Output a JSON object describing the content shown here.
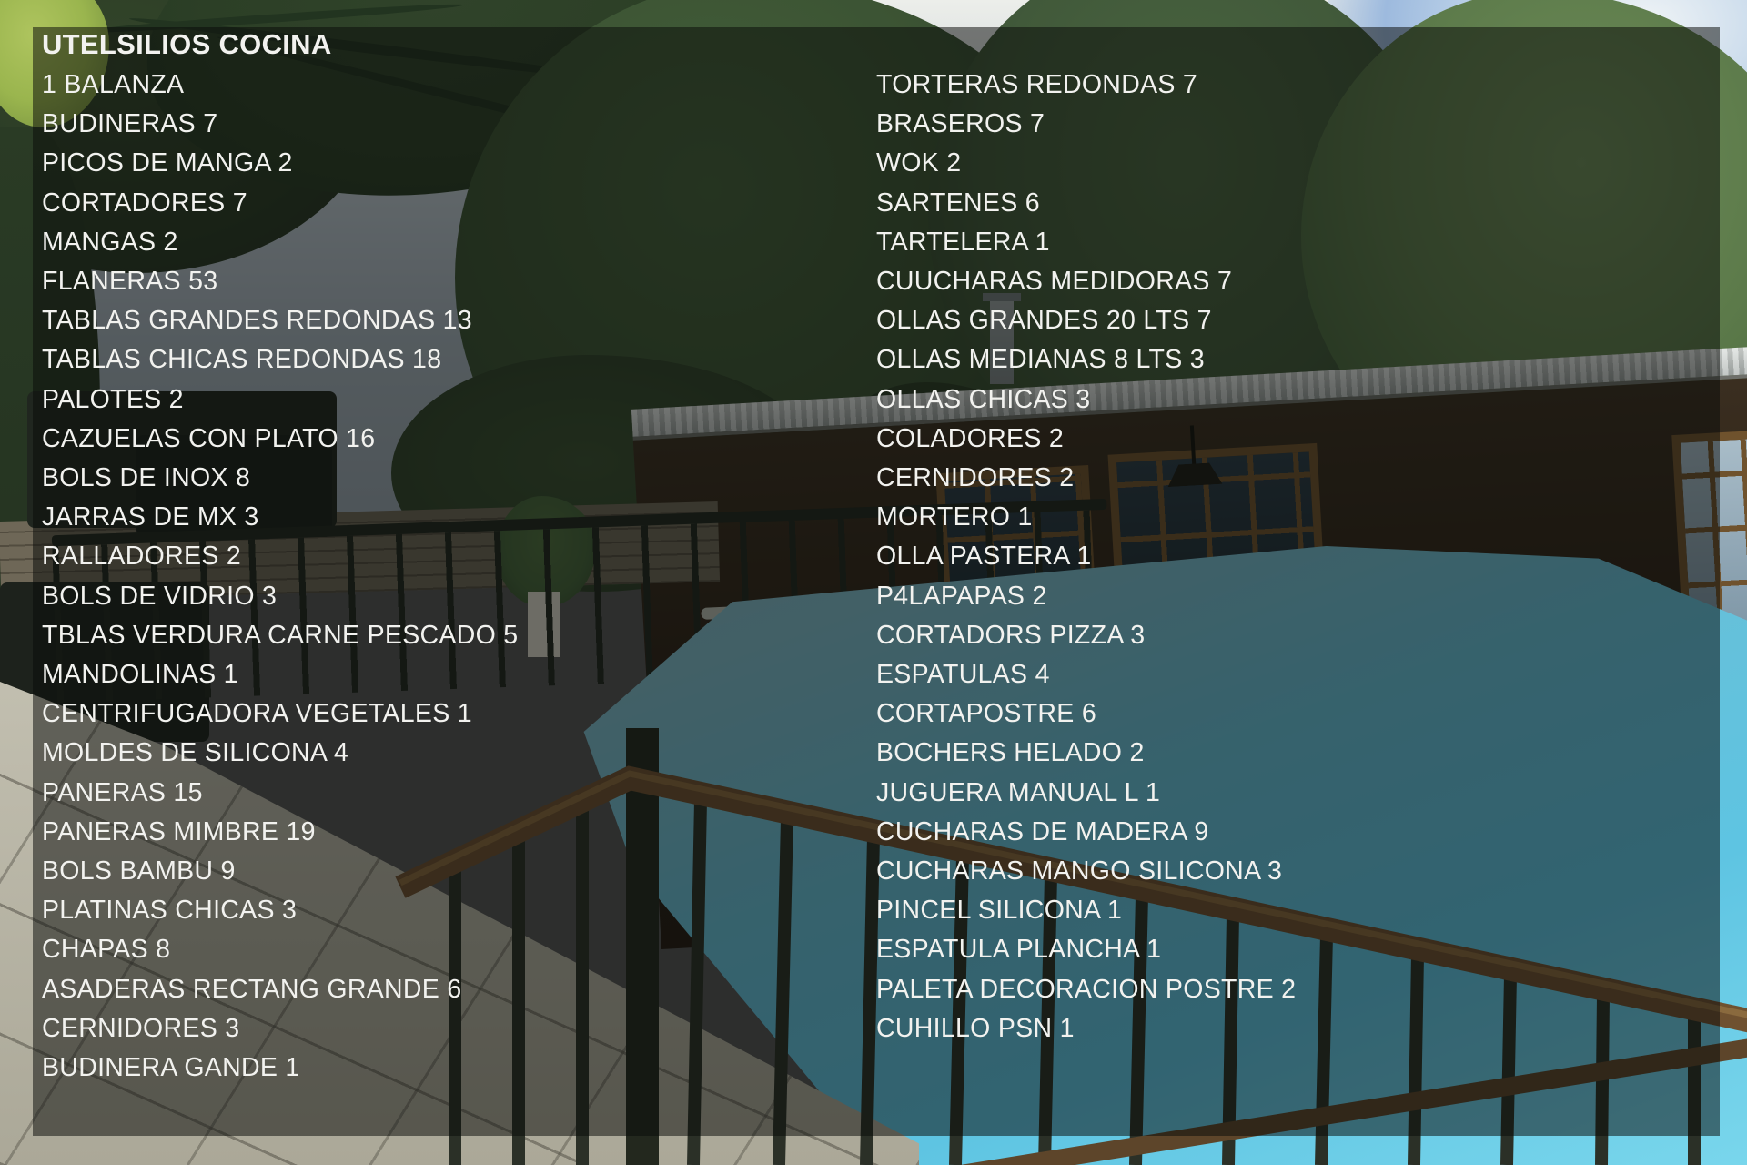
{
  "list": {
    "title": "UTELSILIOS COCINA",
    "left_items": [
      "1 BALANZA",
      "BUDINERAS 7",
      "PICOS DE MANGA 2",
      "CORTADORES 7",
      "MANGAS 2",
      "FLANERAS 53",
      "TABLAS GRANDES REDONDAS 13",
      "TABLAS CHICAS REDONDAS 18",
      "PALOTES 2",
      "CAZUELAS CON PLATO 16",
      "BOLS DE INOX 8",
      "JARRAS DE MX 3",
      "RALLADORES 2",
      "BOLS DE VIDRIO 3",
      "TBLAS VERDURA CARNE PESCADO 5",
      "MANDOLINAS 1",
      "CENTRIFUGADORA VEGETALES 1",
      "MOLDES DE SILICONA 4",
      "PANERAS 15",
      "PANERAS MIMBRE 19",
      "BOLS BAMBU 9",
      "PLATINAS CHICAS 3",
      "CHAPAS 8",
      "ASADERAS RECTANG GRANDE 6",
      "CERNIDORES 3",
      "BUDINERA GANDE 1"
    ],
    "right_items": [
      "TORTERAS REDONDAS 7",
      "BRASEROS 7",
      "WOK 2",
      "SARTENES 6",
      "TARTELERA 1",
      "CUUCHARAS MEDIDORAS 7",
      "OLLAS GRANDES 20 LTS 7",
      "OLLAS MEDIANAS 8 LTS 3",
      "OLLAS CHICAS 3",
      "COLADORES 2",
      "CERNIDORES 2",
      "MORTERO 1",
      "OLLA PASTERA 1",
      "P4LAPAPAS 2",
      "CORTADORS PIZZA 3",
      "ESPATULAS 4",
      "CORTAPOSTRE 6",
      "BOCHERS HELADO 2",
      "JUGUERA MANUAL L 1",
      "CUCHARAS DE MADERA 9",
      "CUCHARAS MANGO SILICONA 3",
      "PINCEL SILICONA 1",
      "ESPATULA PLANCHA 1",
      "PALETA DECORACION POSTRE 2",
      "CUHILLO PSN 1"
    ]
  },
  "style": {
    "text_color": "#f2f2ef",
    "overlay_color": "rgba(10,12,10,0.52)"
  }
}
